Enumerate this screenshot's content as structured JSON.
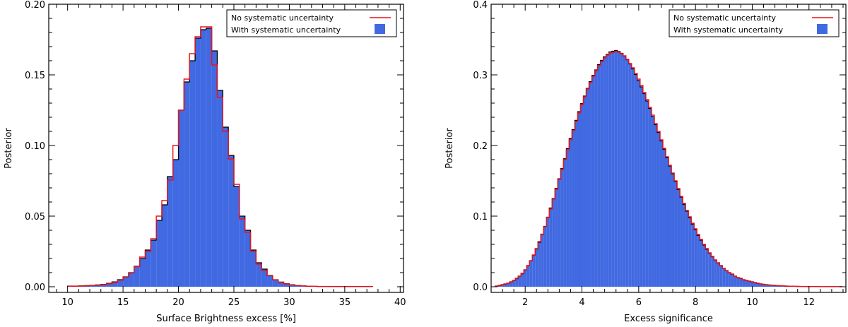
{
  "chart_data": [
    {
      "type": "bar",
      "title": "",
      "xlabel": "Surface Brightness excess [%]",
      "ylabel": "Posterior",
      "xlim": [
        8.3,
        40.3
      ],
      "ylim": [
        -0.004,
        0.2
      ],
      "xticks": [
        10,
        15,
        20,
        25,
        30,
        35,
        40
      ],
      "xtick_labels": [
        "10",
        "15",
        "20",
        "25",
        "30",
        "35",
        "40"
      ],
      "yticks": [
        0.0,
        0.05,
        0.1,
        0.15,
        0.2
      ],
      "ytick_labels": [
        "0.00",
        "0.05",
        "0.10",
        "0.15",
        "0.20"
      ],
      "grid": false,
      "legend_position": "top-right",
      "bin_start": 10.0,
      "bin_width": 0.5,
      "series": [
        {
          "name": "No systematic uncertainty",
          "style": "step-outline",
          "color": "#e8141e",
          "values": [
            0.0004,
            0.0004,
            0.0005,
            0.0006,
            0.0009,
            0.0011,
            0.0015,
            0.0021,
            0.003,
            0.0046,
            0.0068,
            0.0098,
            0.0142,
            0.021,
            0.025,
            0.034,
            0.05,
            0.061,
            0.0755,
            0.1,
            0.125,
            0.147,
            0.165,
            0.177,
            0.184,
            0.184,
            0.157,
            0.134,
            0.11,
            0.0905,
            0.0725,
            0.048,
            0.0385,
            0.025,
            0.016,
            0.0115,
            0.0078,
            0.0049,
            0.0031,
            0.002,
            0.0013,
            0.0009,
            0.0006,
            0.0004,
            0.0003,
            0.0002,
            0.0002,
            0.0001,
            0.0001,
            0.0001,
            0.0001,
            0.0001,
            0.0001,
            0.0001,
            0.0001
          ]
        },
        {
          "name": "With systematic uncertainty",
          "style": "filled",
          "color": "#4169e1",
          "outline": "#000000",
          "values": [
            0.0005,
            0.0005,
            0.0006,
            0.0008,
            0.001,
            0.0013,
            0.0017,
            0.0024,
            0.0034,
            0.005,
            0.007,
            0.01,
            0.0145,
            0.02,
            0.026,
            0.033,
            0.047,
            0.058,
            0.078,
            0.09,
            0.125,
            0.145,
            0.16,
            0.176,
            0.182,
            0.183,
            0.167,
            0.139,
            0.113,
            0.093,
            0.071,
            0.05,
            0.04,
            0.026,
            0.017,
            0.0125,
            0.008,
            0.005,
            0.0033,
            0.0021,
            0.0014,
            0.0009,
            0.0006,
            0.0004,
            0.0003,
            0.0002,
            0.0002,
            0.0001,
            0.0001,
            0.0001,
            0.0001,
            0.0001,
            0.0001,
            0.0001,
            0.0001
          ]
        }
      ]
    },
    {
      "type": "bar",
      "title": "",
      "xlabel": "Excess significance",
      "ylabel": "Posterior",
      "xlim": [
        0.8,
        13.3
      ],
      "ylim": [
        -0.008,
        0.4
      ],
      "xticks": [
        2,
        4,
        6,
        8,
        10,
        12
      ],
      "xtick_labels": [
        "2",
        "4",
        "6",
        "8",
        "10",
        "12"
      ],
      "yticks": [
        0.0,
        0.1,
        0.2,
        0.3,
        0.4
      ],
      "ytick_labels": [
        "0.0",
        "0.1",
        "0.2",
        "0.3",
        "0.4"
      ],
      "grid": false,
      "legend_position": "top-right",
      "bin_start": 0.95,
      "bin_width": 0.1,
      "series": [
        {
          "name": "No systematic uncertainty",
          "style": "step-outline",
          "color": "#e8141e",
          "values": [
            0.001,
            0.002,
            0.003,
            0.004,
            0.005,
            0.007,
            0.009,
            0.012,
            0.015,
            0.019,
            0.024,
            0.03,
            0.037,
            0.045,
            0.054,
            0.064,
            0.074,
            0.085,
            0.098,
            0.11,
            0.124,
            0.138,
            0.152,
            0.166,
            0.18,
            0.194,
            0.208,
            0.221,
            0.234,
            0.246,
            0.258,
            0.269,
            0.28,
            0.289,
            0.298,
            0.306,
            0.313,
            0.319,
            0.324,
            0.328,
            0.331,
            0.332,
            0.333,
            0.332,
            0.33,
            0.327,
            0.322,
            0.316,
            0.31,
            0.302,
            0.294,
            0.285,
            0.275,
            0.265,
            0.254,
            0.243,
            0.231,
            0.22,
            0.208,
            0.196,
            0.184,
            0.172,
            0.161,
            0.15,
            0.139,
            0.128,
            0.118,
            0.108,
            0.099,
            0.09,
            0.082,
            0.074,
            0.067,
            0.06,
            0.054,
            0.048,
            0.043,
            0.038,
            0.034,
            0.03,
            0.026,
            0.023,
            0.02,
            0.018,
            0.015,
            0.013,
            0.012,
            0.01,
            0.009,
            0.008,
            0.007,
            0.006,
            0.005,
            0.004,
            0.0035,
            0.003,
            0.0026,
            0.0022,
            0.0019,
            0.0016,
            0.0014,
            0.0012,
            0.001,
            0.0008,
            0.0007,
            0.0006,
            0.0005,
            0.0004,
            0.0004,
            0.0003,
            0.0003,
            0.0002,
            0.0002,
            0.0002,
            0.0001,
            0.0001,
            0.0001,
            0.0001,
            0.0001,
            0.0001,
            0.0001,
            0.0001
          ]
        },
        {
          "name": "With systematic uncertainty",
          "style": "filled",
          "color": "#4169e1",
          "outline": "#000000",
          "values": [
            0.001,
            0.0018,
            0.0028,
            0.0038,
            0.005,
            0.0068,
            0.0088,
            0.0115,
            0.015,
            0.0185,
            0.0238,
            0.0296,
            0.0368,
            0.0448,
            0.0535,
            0.063,
            0.0745,
            0.0855,
            0.0985,
            0.1115,
            0.1248,
            0.1392,
            0.1528,
            0.1672,
            0.1812,
            0.1956,
            0.2098,
            0.2225,
            0.2356,
            0.2478,
            0.2592,
            0.27,
            0.2808,
            0.2905,
            0.2992,
            0.307,
            0.3145,
            0.3205,
            0.3255,
            0.329,
            0.3325,
            0.3335,
            0.3345,
            0.333,
            0.3305,
            0.3268,
            0.3215,
            0.3155,
            0.3085,
            0.3005,
            0.292,
            0.283,
            0.2735,
            0.263,
            0.2525,
            0.241,
            0.2295,
            0.2185,
            0.2065,
            0.1948,
            0.1828,
            0.171,
            0.16,
            0.149,
            0.1378,
            0.127,
            0.1168,
            0.107,
            0.0978,
            0.0888,
            0.0808,
            0.0728,
            0.066,
            0.0592,
            0.0532,
            0.0475,
            0.0425,
            0.0378,
            0.0336,
            0.0296,
            0.026,
            0.0228,
            0.0198,
            0.0176,
            0.015,
            0.0128,
            0.0118,
            0.0098,
            0.0088,
            0.0078,
            0.0068,
            0.0058,
            0.0048,
            0.004,
            0.0034,
            0.0029,
            0.0025,
            0.0021,
            0.0018,
            0.0015,
            0.0013,
            0.0011,
            0.0009,
            0.0008,
            0.0007,
            0.0006,
            0.0005,
            0.0004,
            0.0004,
            0.0003,
            0.0003,
            0.0002,
            0.0002,
            0.0002,
            0.0001,
            0.0001,
            0.0001,
            0.0001,
            0.0001,
            0.0001,
            0.0001,
            0.0001
          ]
        }
      ]
    }
  ]
}
